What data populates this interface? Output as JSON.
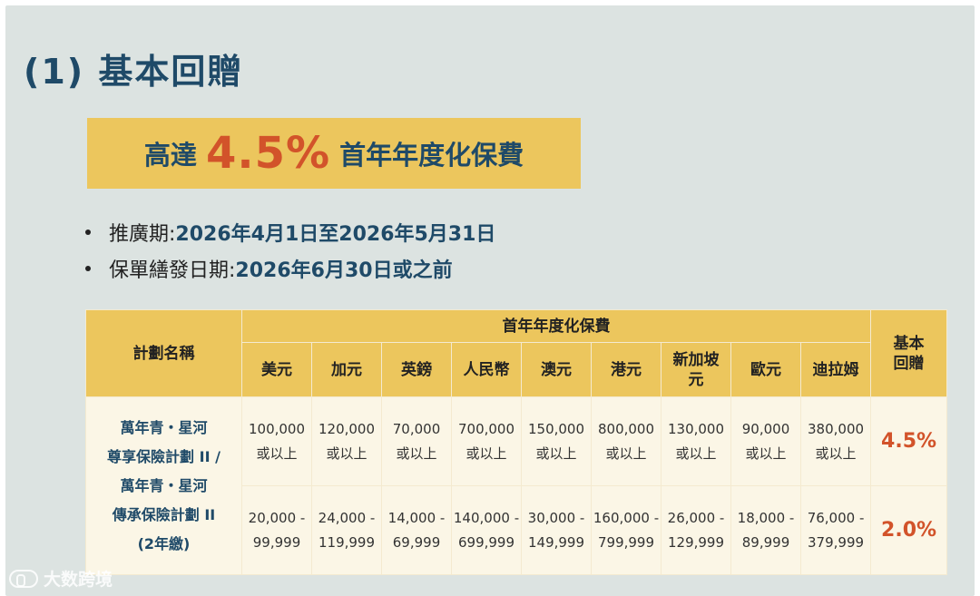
{
  "heading": "(1) 基本回贈",
  "banner": {
    "prefix": "高達",
    "percent": "4.5%",
    "suffix": "首年年度化保費"
  },
  "bullets": [
    {
      "label": "推廣期: ",
      "value": "2026年4月1日至2026年5月31日"
    },
    {
      "label": "保單繕發日期: ",
      "value": "2026年6月30日或之前"
    }
  ],
  "table": {
    "plan_header": "計劃名稱",
    "premium_header": "首年年度化保費",
    "rebate_header": [
      "基本",
      "回贈"
    ],
    "currencies": [
      "美元",
      "加元",
      "英鎊",
      "人民幣",
      "澳元",
      "港元",
      [
        "新加坡",
        "元"
      ],
      "歐元",
      "迪拉姆"
    ],
    "plan_lines": [
      "萬年青・星河",
      "尊享保險計劃 II /",
      "萬年青・星河",
      "傳承保險計劃 II",
      "(2年繳)"
    ],
    "rows": [
      {
        "cells": [
          [
            "100,000",
            "或以上"
          ],
          [
            "120,000",
            "或以上"
          ],
          [
            "70,000",
            "或以上"
          ],
          [
            "700,000",
            "或以上"
          ],
          [
            "150,000",
            "或以上"
          ],
          [
            "800,000",
            "或以上"
          ],
          [
            "130,000",
            "或以上"
          ],
          [
            "90,000",
            "或以上"
          ],
          [
            "380,000",
            "或以上"
          ]
        ],
        "rebate": "4.5%"
      },
      {
        "cells": [
          [
            "20,000 -",
            "99,999"
          ],
          [
            "24,000 -",
            "119,999"
          ],
          [
            "14,000 -",
            "69,999"
          ],
          [
            "140,000 -",
            "699,999"
          ],
          [
            "30,000 -",
            "149,999"
          ],
          [
            "160,000 -",
            "799,999"
          ],
          [
            "26,000 -",
            "129,999"
          ],
          [
            "18,000 -",
            "89,999"
          ],
          [
            "76,000 -",
            "379,999"
          ]
        ],
        "rebate": "2.0%"
      }
    ]
  },
  "watermark": "大数跨境",
  "colors": {
    "navy": "#1f4a68",
    "gold": "#ecc65d",
    "accent": "#d2532a",
    "background": "#dce3e1",
    "cell": "#fbf6e6"
  }
}
